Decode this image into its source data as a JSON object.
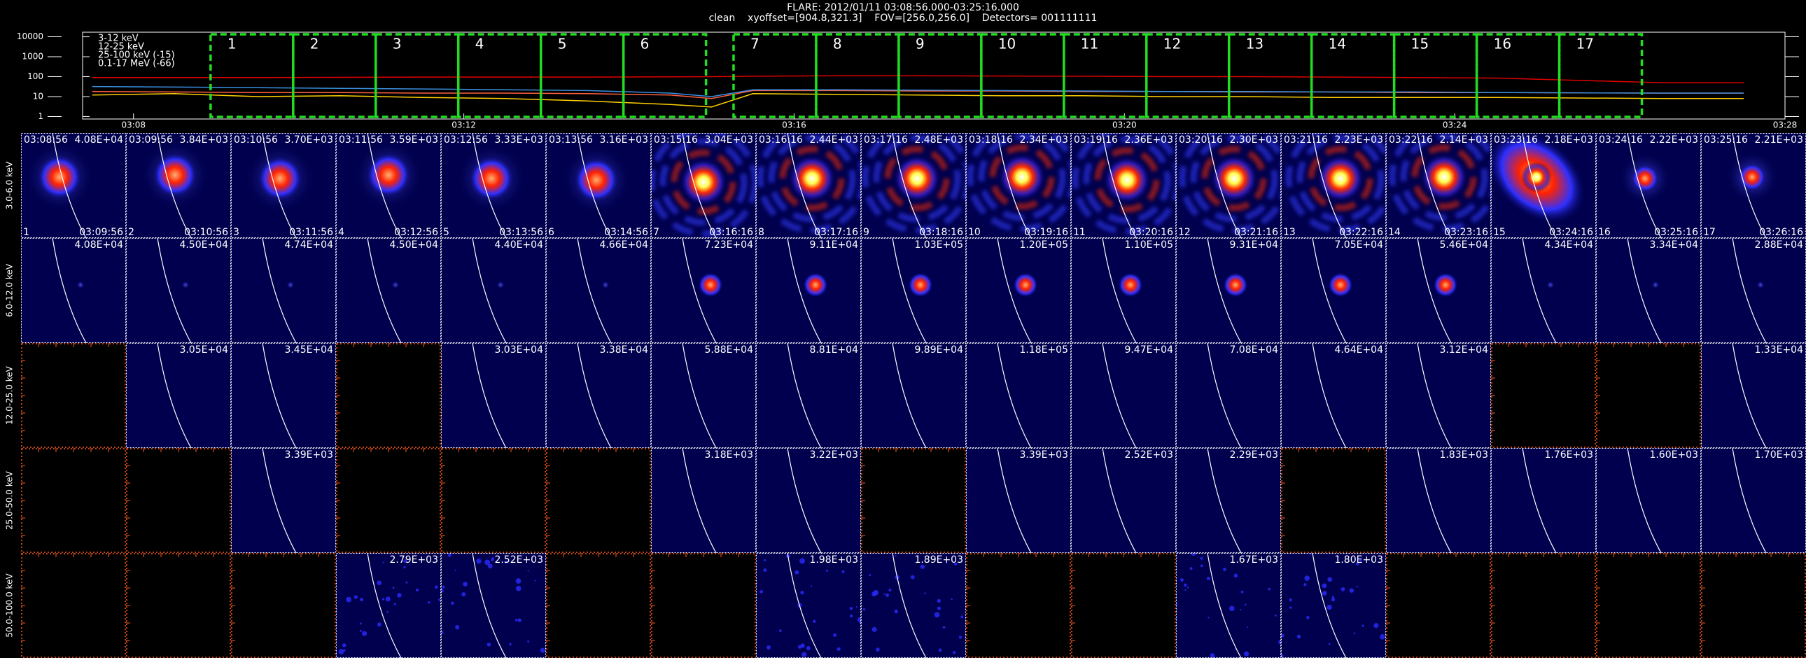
{
  "header": {
    "title": "FLARE: 2012/01/11 03:08:56.000-03:25:16.000",
    "subtitle": "clean    xyoffset=[904.8,321.3]    FOV=[256.0,256.0]    Detectors= 001111111"
  },
  "chart_data": {
    "type": "line",
    "x": [
      "03:07:30",
      "03:08:30",
      "03:09:30",
      "03:10:30",
      "03:11:30",
      "03:12:30",
      "03:13:30",
      "03:14:30",
      "03:15:00",
      "03:15:30",
      "03:16:30",
      "03:17:30",
      "03:18:30",
      "03:19:30",
      "03:20:30",
      "03:21:30",
      "03:22:30",
      "03:23:30",
      "03:24:30",
      "03:26:30",
      "03:27:30"
    ],
    "xlim": [
      "03:07:23",
      "03:28:00"
    ],
    "xticks": [
      "03:08",
      "03:12",
      "03:16",
      "03:20",
      "03:24",
      "03:28"
    ],
    "ylim": [
      0.75,
      17000
    ],
    "yticks": [
      1,
      10,
      100,
      1000,
      10000
    ],
    "log_scale": true,
    "series": [
      {
        "name": "3-12 keV",
        "color": "#e00000",
        "values": [
          90,
          90,
          90,
          92,
          95,
          95,
          95,
          98,
          100,
          105,
          110,
          110,
          108,
          105,
          100,
          100,
          95,
          90,
          85,
          50,
          50
        ]
      },
      {
        "name": "12-25 keV",
        "color": "#ff6040",
        "values": [
          18,
          17,
          16,
          16,
          15,
          15,
          14,
          12,
          8,
          20,
          20,
          19,
          19,
          18,
          18,
          17,
          17,
          16,
          16,
          15,
          15
        ]
      },
      {
        "name": "25-100 keV (-15)",
        "color": "#ffd000",
        "values": [
          12,
          14,
          10,
          11,
          9,
          8,
          6,
          4,
          3,
          14,
          13,
          12,
          11,
          11,
          10,
          10,
          9,
          9,
          9,
          8,
          8
        ]
      },
      {
        "name": "0.1-17 MeV (-66)",
        "color": "#3a8fe0",
        "values": [
          32,
          30,
          28,
          26,
          24,
          22,
          20,
          15,
          10,
          22,
          22,
          21,
          20,
          19,
          18,
          18,
          17,
          17,
          16,
          15,
          15
        ]
      }
    ],
    "intervals": [
      {
        "label": "1",
        "start": "03:08:56",
        "end": "03:09:56"
      },
      {
        "label": "2",
        "start": "03:09:56",
        "end": "03:10:56"
      },
      {
        "label": "3",
        "start": "03:10:56",
        "end": "03:11:56"
      },
      {
        "label": "4",
        "start": "03:11:56",
        "end": "03:12:56"
      },
      {
        "label": "5",
        "start": "03:12:56",
        "end": "03:13:56"
      },
      {
        "label": "6",
        "start": "03:13:56",
        "end": "03:14:56"
      },
      {
        "label": "7",
        "start": "03:15:16",
        "end": "03:16:16"
      },
      {
        "label": "8",
        "start": "03:16:16",
        "end": "03:17:16"
      },
      {
        "label": "9",
        "start": "03:17:16",
        "end": "03:18:16"
      },
      {
        "label": "10",
        "start": "03:18:16",
        "end": "03:19:16"
      },
      {
        "label": "11",
        "start": "03:19:16",
        "end": "03:20:16"
      },
      {
        "label": "12",
        "start": "03:20:16",
        "end": "03:21:16"
      },
      {
        "label": "13",
        "start": "03:21:16",
        "end": "03:22:16"
      },
      {
        "label": "14",
        "start": "03:22:16",
        "end": "03:23:16"
      },
      {
        "label": "15",
        "start": "03:23:16",
        "end": "03:24:16"
      },
      {
        "label": "16",
        "start": "03:24:16",
        "end": "03:25:16"
      },
      {
        "label": "17",
        "start": "03:25:16",
        "end": "03:26:16"
      }
    ],
    "interval_color": "#22dd22"
  },
  "image_grid": {
    "rows": [
      {
        "label": "3.0-6.0 keV",
        "max": [
          "4.08E+04",
          "3.84E+03",
          "3.70E+03",
          "3.59E+03",
          "3.33E+03",
          "3.16E+03",
          "3.04E+03",
          "2.44E+03",
          "2.48E+03",
          "2.34E+03",
          "2.36E+03",
          "2.30E+03",
          "2.23E+03",
          "2.14E+03",
          "2.18E+03",
          "2.22E+03",
          "2.21E+03"
        ]
      },
      {
        "label": "6.0-12.0 keV",
        "max": [
          "4.08E+04",
          "4.50E+04",
          "4.74E+04",
          "4.50E+04",
          "4.40E+04",
          "4.66E+04",
          "7.23E+04",
          "9.11E+04",
          "1.03E+05",
          "1.20E+05",
          "1.10E+05",
          "9.31E+04",
          "7.05E+04",
          "5.46E+04",
          "4.34E+04",
          "3.34E+04",
          "2.88E+04"
        ]
      },
      {
        "label": "12.0-25.0 keV",
        "max": [
          null,
          "3.05E+04",
          "3.45E+04",
          null,
          "3.03E+04",
          "3.38E+04",
          "5.88E+04",
          "8.81E+04",
          "9.89E+04",
          "1.18E+05",
          "9.47E+04",
          "7.08E+04",
          "4.64E+04",
          "3.12E+04",
          null,
          null,
          "1.33E+04"
        ]
      },
      {
        "label": "25.0-50.0 keV",
        "max": [
          null,
          null,
          "3.39E+03",
          null,
          null,
          null,
          "3.18E+03",
          "3.22E+03",
          null,
          "3.39E+03",
          "2.52E+03",
          "2.29E+03",
          null,
          "1.83E+03",
          "1.76E+03",
          "1.60E+03",
          "1.70E+03"
        ]
      },
      {
        "label": "50.0-100.0 keV",
        "max": [
          null,
          null,
          null,
          "2.79E+03",
          "2.52E+03",
          null,
          null,
          "1.98E+03",
          "1.89E+03",
          null,
          null,
          "1.67E+03",
          "1.80E+03",
          null,
          null,
          null,
          null
        ]
      }
    ]
  }
}
